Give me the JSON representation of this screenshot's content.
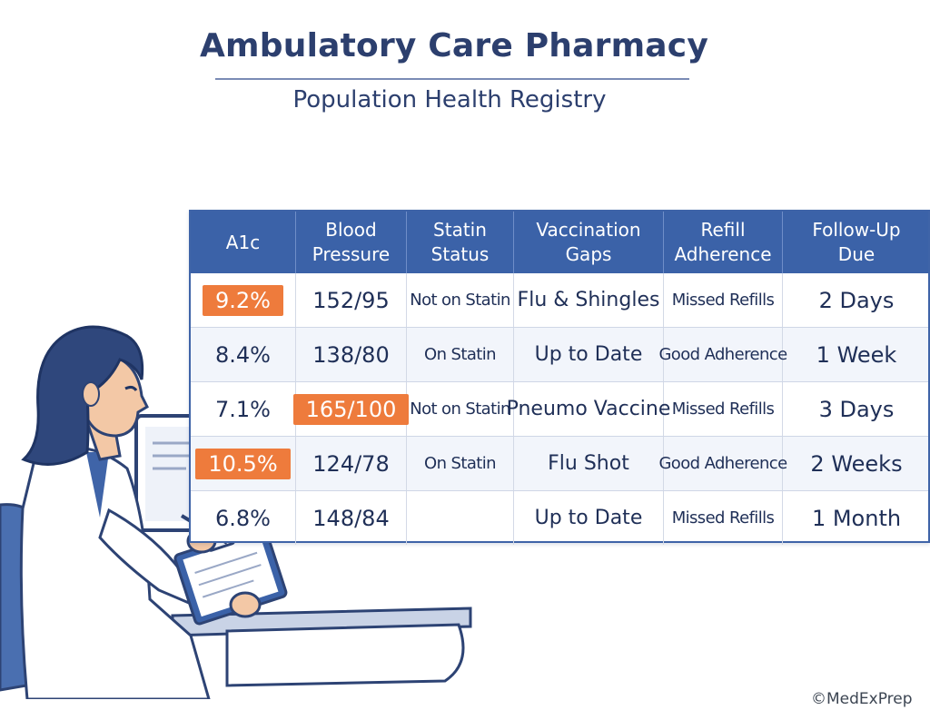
{
  "header": {
    "title": "Ambulatory Care Pharmacy",
    "subtitle": "Population Health Registry"
  },
  "registry": {
    "columns": [
      "A1c",
      "Blood\nPressure",
      "Statin\nStatus",
      "Vaccination\nGaps",
      "Refill\nAdherence",
      "Follow-Up\nDue"
    ],
    "rows": [
      {
        "a1c": "9.2%",
        "a1c_flag": true,
        "bp": "152/95",
        "bp_flag": false,
        "statin": "Not on Statin",
        "vaccine": "Flu & Shingles",
        "refill": "Missed Refills",
        "followup": "2 Days"
      },
      {
        "a1c": "8.4%",
        "a1c_flag": false,
        "bp": "138/80",
        "bp_flag": false,
        "statin": "On Statin",
        "vaccine": "Up to Date",
        "refill": "Good Adherence",
        "followup": "1 Week"
      },
      {
        "a1c": "7.1%",
        "a1c_flag": false,
        "bp": "165/100",
        "bp_flag": true,
        "statin": "Not on Statin",
        "vaccine": "Pneumo Vaccine",
        "refill": "Missed Refills",
        "followup": "3 Days"
      },
      {
        "a1c": "10.5%",
        "a1c_flag": true,
        "bp": "124/78",
        "bp_flag": false,
        "statin": "On Statin",
        "vaccine": "Flu Shot",
        "refill": "Good Adherence",
        "followup": "2 Weeks"
      },
      {
        "a1c": "6.8%",
        "a1c_flag": false,
        "bp": "148/84",
        "bp_flag": false,
        "statin": "",
        "vaccine": "Up to Date",
        "refill": "Missed Refills",
        "followup": "1 Month"
      }
    ]
  },
  "colors": {
    "header_blue": "#3b62a8",
    "flag_orange": "#ee7b3c",
    "text_navy": "#1f2f57"
  },
  "illustration": {
    "icon": "pharmacist-at-desk-with-clipboard-icon"
  },
  "footer": {
    "credit": "©MedExPrep"
  }
}
